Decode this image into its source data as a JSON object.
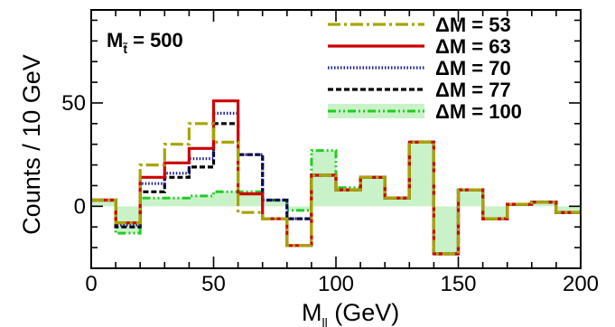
{
  "chart_data": {
    "type": "line",
    "ylabel": "Counts / 10 GeV",
    "xlabel_main": "M",
    "xlabel_sub": "ll",
    "xlabel_unit": " (GeV)",
    "xlim": [
      0,
      200
    ],
    "ylim": [
      -30,
      95
    ],
    "xticks": [
      0,
      50,
      100,
      150,
      200
    ],
    "yticks": [
      0,
      50
    ],
    "grid": false,
    "legend_position": "top-right",
    "annotation": {
      "main": "M",
      "sub": "t̃",
      "rest": " = 500"
    },
    "bin_edges": [
      0,
      10,
      20,
      30,
      40,
      50,
      60,
      70,
      80,
      90,
      100,
      110,
      120,
      130,
      140,
      150,
      160,
      170,
      180,
      190,
      200
    ],
    "series": [
      {
        "name": "ΔM = 53",
        "color": "#a7a400",
        "dash": "14 4 3 4",
        "width": 3.2,
        "fill": false,
        "values": [
          3,
          -8,
          20,
          30,
          40,
          31,
          -3,
          -6,
          -19,
          15,
          8,
          14,
          4,
          31,
          -23,
          8,
          -6,
          1,
          2,
          -3
        ]
      },
      {
        "name": "ΔM = 63",
        "color": "#cc0000",
        "dash": "",
        "width": 3.2,
        "fill": false,
        "values": [
          3,
          -8,
          14,
          21,
          28,
          51,
          6,
          -6,
          -19,
          15,
          8,
          14,
          4,
          31,
          -23,
          8,
          -6,
          1,
          2,
          -3
        ]
      },
      {
        "name": "ΔM = 70",
        "color": "#1a1a99",
        "dash": "1.5 2",
        "width": 3.2,
        "fill": false,
        "values": [
          3,
          -9,
          11,
          16,
          23,
          45,
          25,
          3,
          -6,
          15,
          8,
          14,
          4,
          31,
          -23,
          8,
          -6,
          1,
          2,
          -3
        ]
      },
      {
        "name": "ΔM = 77",
        "color": "#000000",
        "dash": "6 3",
        "width": 3.2,
        "fill": false,
        "values": [
          3,
          -10,
          7,
          14,
          19,
          40,
          25,
          3,
          -6,
          15,
          8,
          14,
          4,
          31,
          -23,
          8,
          -6,
          1,
          2,
          -3
        ]
      },
      {
        "name": "ΔM = 100",
        "color": "#22cc22",
        "dash": "9 3 2 3 2 3",
        "width": 3,
        "fill": true,
        "fill_color": "#c9f2c9",
        "values": [
          3,
          -13,
          4,
          4,
          5,
          7,
          7,
          3,
          -2,
          27,
          9,
          14,
          4,
          31,
          -23,
          8,
          -6,
          1,
          2,
          -3
        ]
      }
    ]
  }
}
